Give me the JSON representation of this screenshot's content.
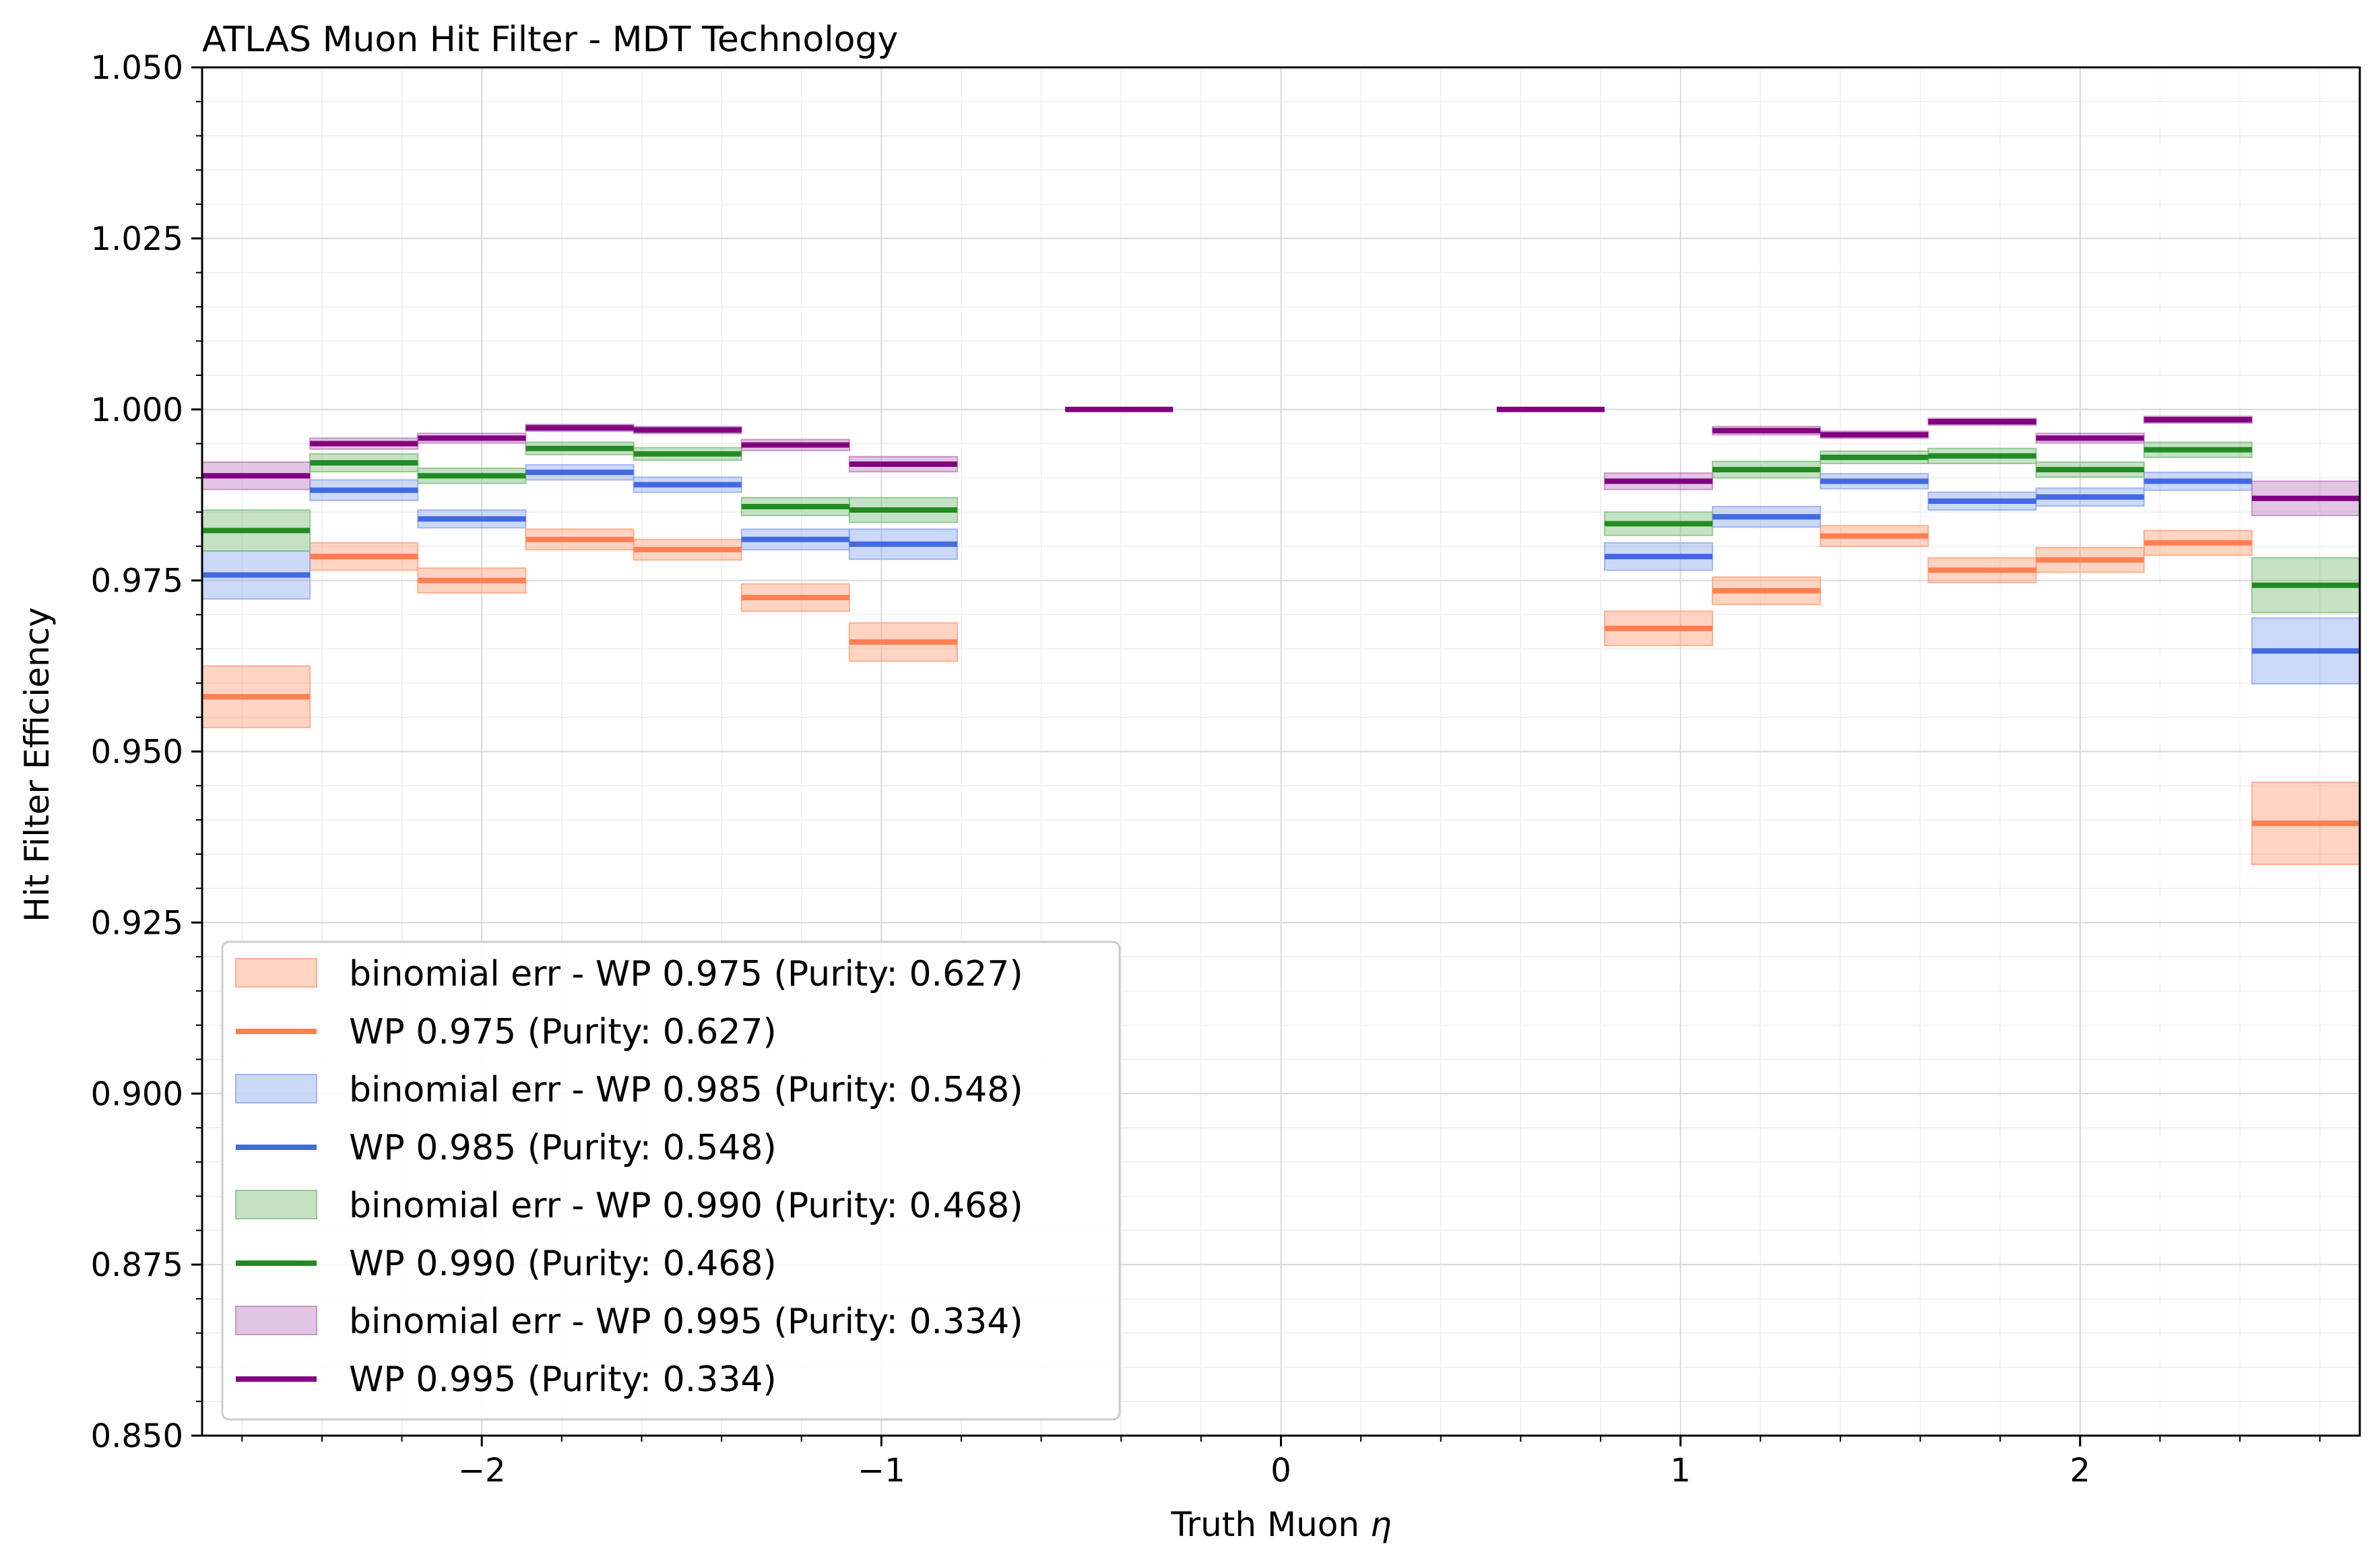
{
  "chart_data": {
    "type": "step",
    "title": "ATLAS Muon Hit Filter - MDT Technology",
    "xlabel_text": "Truth Muon ",
    "xlabel_symbol": "η",
    "ylabel": "Hit Filter Efficiency",
    "xlim": [
      -2.7,
      2.7
    ],
    "ylim": [
      0.85,
      1.05
    ],
    "x_ticks": [
      -2,
      -1,
      0,
      1,
      2
    ],
    "x_tick_labels": [
      "−2",
      "−1",
      "0",
      "1",
      "2"
    ],
    "y_ticks": [
      0.85,
      0.875,
      0.9,
      0.925,
      0.95,
      0.975,
      1.0,
      1.025,
      1.05
    ],
    "y_tick_labels": [
      "0.850",
      "0.875",
      "0.900",
      "0.925",
      "0.950",
      "0.975",
      "1.000",
      "1.025",
      "1.050"
    ],
    "grid": true,
    "legend_position": "lower-left",
    "bins": [
      [
        -2.7,
        -2.43
      ],
      [
        -2.43,
        -2.16
      ],
      [
        -2.16,
        -1.89
      ],
      [
        -1.89,
        -1.62
      ],
      [
        -1.62,
        -1.35
      ],
      [
        -1.35,
        -1.08
      ],
      [
        -1.08,
        -0.81
      ],
      [
        -0.81,
        -0.54
      ],
      [
        -0.54,
        -0.27
      ],
      [
        -0.27,
        0.0
      ],
      [
        0.0,
        0.27
      ],
      [
        0.27,
        0.54
      ],
      [
        0.54,
        0.81
      ],
      [
        0.81,
        1.08
      ],
      [
        1.08,
        1.35
      ],
      [
        1.35,
        1.62
      ],
      [
        1.62,
        1.89
      ],
      [
        1.89,
        2.16
      ],
      [
        2.16,
        2.43
      ],
      [
        2.43,
        2.7
      ]
    ],
    "series": [
      {
        "name": "WP 0.975 (Purity: 0.627)",
        "band_name": "binomial err - WP 0.975 (Purity: 0.627)",
        "color": "#ff7f50",
        "band_color": "#ffa07a",
        "values": [
          0.958,
          0.9785,
          0.975,
          0.981,
          0.9795,
          0.9725,
          0.966,
          null,
          null,
          null,
          null,
          null,
          null,
          0.968,
          0.9735,
          0.9815,
          0.9765,
          0.978,
          0.9805,
          0.9395
        ],
        "errors": [
          0.0045,
          0.002,
          0.0018,
          0.0015,
          0.0015,
          0.002,
          0.0028,
          null,
          null,
          null,
          null,
          null,
          null,
          0.0025,
          0.002,
          0.0015,
          0.0018,
          0.0018,
          0.0018,
          0.006
        ]
      },
      {
        "name": "WP 0.985 (Purity: 0.548)",
        "band_name": "binomial err - WP 0.985 (Purity: 0.548)",
        "color": "#4169e1",
        "band_color": "#8fa8f0",
        "values": [
          0.9758,
          0.9882,
          0.984,
          0.9908,
          0.989,
          0.981,
          0.9803,
          null,
          null,
          null,
          null,
          null,
          null,
          0.9785,
          0.9843,
          0.9895,
          0.9866,
          0.9872,
          0.9895,
          0.9647
        ],
        "errors": [
          0.0035,
          0.0015,
          0.0013,
          0.0011,
          0.0011,
          0.0015,
          0.0022,
          null,
          null,
          null,
          null,
          null,
          null,
          0.002,
          0.0015,
          0.0011,
          0.0013,
          0.0013,
          0.0013,
          0.0048
        ]
      },
      {
        "name": "WP 0.990 (Purity: 0.468)",
        "band_name": "binomial err - WP 0.990 (Purity: 0.468)",
        "color": "#228b22",
        "band_color": "#7fbf7f",
        "values": [
          0.9823,
          0.9922,
          0.9903,
          0.9943,
          0.9935,
          0.9858,
          0.9853,
          null,
          null,
          null,
          null,
          null,
          null,
          0.9833,
          0.9912,
          0.993,
          0.9932,
          0.9912,
          0.9941,
          0.9743
        ],
        "errors": [
          0.003,
          0.0013,
          0.0011,
          0.0009,
          0.0009,
          0.0013,
          0.0018,
          null,
          null,
          null,
          null,
          null,
          null,
          0.0017,
          0.0012,
          0.0009,
          0.0011,
          0.0011,
          0.0011,
          0.004
        ]
      },
      {
        "name": "WP 0.995 (Purity: 0.334)",
        "band_name": "binomial err - WP 0.995 (Purity: 0.334)",
        "color": "#800080",
        "band_color": "#bf7fbf",
        "values": [
          0.9903,
          0.995,
          0.9958,
          0.9973,
          0.997,
          0.9948,
          0.992,
          null,
          1.0,
          null,
          null,
          null,
          1.0,
          0.9895,
          0.9969,
          0.9963,
          0.9982,
          0.9958,
          0.9985,
          0.987
        ],
        "errors": [
          0.002,
          0.0008,
          0.0007,
          0.0005,
          0.0005,
          0.0008,
          0.0011,
          null,
          0,
          null,
          null,
          null,
          0,
          0.0012,
          0.0006,
          0.0005,
          0.0005,
          0.0007,
          0.0005,
          0.0025
        ]
      }
    ]
  }
}
